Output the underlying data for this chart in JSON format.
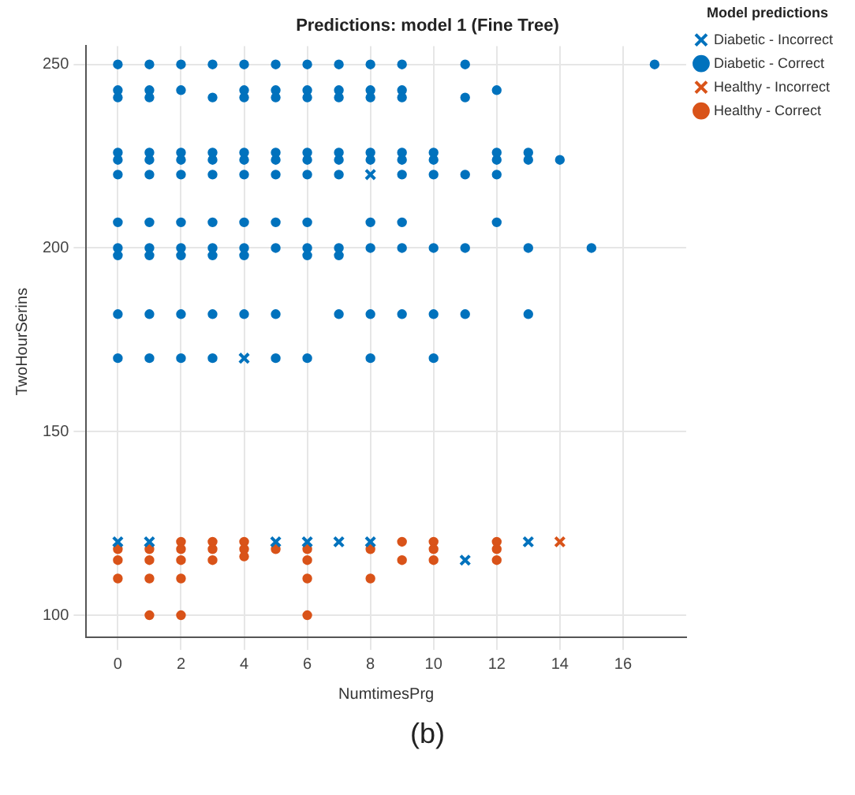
{
  "chart_data": {
    "type": "scatter",
    "title": "Predictions: model 1 (Fine Tree)",
    "xlabel": "NumtimesPrg",
    "ylabel": "TwoHourSerins",
    "legend_title": "Model predictions",
    "legend": "top right",
    "grid": true,
    "xlim": [
      -1,
      18
    ],
    "xticks": [
      0,
      2,
      4,
      6,
      8,
      10,
      12,
      14,
      16
    ],
    "ylim": [
      94,
      255
    ],
    "yticks": [
      100,
      150,
      200,
      250
    ],
    "annotations": [
      "(b)"
    ],
    "series": [
      {
        "name": "Diabetic - Incorrect",
        "color": "#0072bd",
        "marker": "cross",
        "x": [
          4,
          8,
          0,
          1,
          5,
          6,
          7,
          8,
          11,
          13
        ],
        "values": [
          170,
          220,
          120,
          120,
          120,
          120,
          120,
          120,
          115,
          120
        ]
      },
      {
        "name": "Diabetic - Correct",
        "color": "#0072bd",
        "marker": "circle",
        "x": [
          0,
          1,
          2,
          3,
          4,
          5,
          6,
          7,
          8,
          9,
          11,
          17,
          0,
          1,
          2,
          4,
          5,
          6,
          7,
          8,
          9,
          12,
          0,
          1,
          3,
          4,
          5,
          6,
          7,
          8,
          9,
          11,
          0,
          1,
          2,
          3,
          4,
          5,
          6,
          7,
          8,
          9,
          10,
          12,
          13,
          0,
          1,
          2,
          3,
          4,
          5,
          6,
          7,
          8,
          9,
          10,
          12,
          13,
          14,
          0,
          1,
          2,
          3,
          4,
          5,
          6,
          7,
          9,
          10,
          11,
          12,
          0,
          1,
          2,
          3,
          4,
          5,
          6,
          8,
          9,
          12,
          0,
          1,
          2,
          3,
          4,
          5,
          6,
          7,
          8,
          9,
          10,
          11,
          13,
          15,
          0,
          1,
          2,
          3,
          4,
          6,
          7,
          0,
          1,
          2,
          3,
          4,
          5,
          7,
          8,
          9,
          10,
          11,
          13,
          0,
          1,
          2,
          3,
          5,
          6,
          8,
          10
        ],
        "values": [
          250,
          250,
          250,
          250,
          250,
          250,
          250,
          250,
          250,
          250,
          250,
          250,
          243,
          243,
          243,
          243,
          243,
          243,
          243,
          243,
          243,
          243,
          241,
          241,
          241,
          241,
          241,
          241,
          241,
          241,
          241,
          241,
          226,
          226,
          226,
          226,
          226,
          226,
          226,
          226,
          226,
          226,
          226,
          226,
          226,
          224,
          224,
          224,
          224,
          224,
          224,
          224,
          224,
          224,
          224,
          224,
          224,
          224,
          224,
          220,
          220,
          220,
          220,
          220,
          220,
          220,
          220,
          220,
          220,
          220,
          220,
          207,
          207,
          207,
          207,
          207,
          207,
          207,
          207,
          207,
          207,
          200,
          200,
          200,
          200,
          200,
          200,
          200,
          200,
          200,
          200,
          200,
          200,
          200,
          200,
          198,
          198,
          198,
          198,
          198,
          198,
          198,
          182,
          182,
          182,
          182,
          182,
          182,
          182,
          182,
          182,
          182,
          182,
          182,
          170,
          170,
          170,
          170,
          170,
          170,
          170,
          170
        ]
      },
      {
        "name": "Healthy - Incorrect",
        "color": "#d95319",
        "marker": "cross",
        "x": [
          14
        ],
        "values": [
          120
        ]
      },
      {
        "name": "Healthy - Correct",
        "color": "#d95319",
        "marker": "circle",
        "x": [
          0,
          0,
          0,
          1,
          1,
          1,
          1,
          2,
          2,
          2,
          2,
          2,
          3,
          3,
          3,
          4,
          4,
          4,
          5,
          6,
          6,
          6,
          6,
          8,
          8,
          9,
          9,
          10,
          10,
          10,
          12,
          12,
          12
        ],
        "values": [
          118,
          115,
          110,
          118,
          115,
          110,
          100,
          120,
          118,
          115,
          110,
          100,
          120,
          118,
          115,
          120,
          118,
          116,
          118,
          118,
          115,
          110,
          100,
          118,
          110,
          120,
          115,
          120,
          118,
          115,
          120,
          118,
          115
        ]
      }
    ]
  }
}
